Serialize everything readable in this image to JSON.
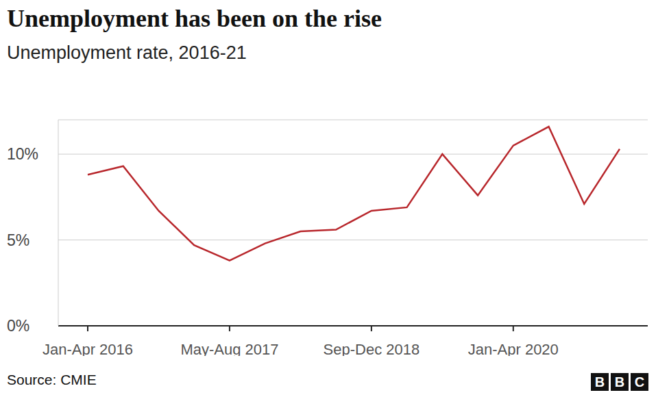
{
  "chart_data": {
    "type": "line",
    "title": "Unemployment has been on the rise",
    "subtitle": "Unemployment rate, 2016-21",
    "source": "Source: CMIE",
    "logo": "BBC",
    "categories": [
      "Jan-Apr 2016",
      null,
      null,
      null,
      "May-Aug 2017",
      null,
      null,
      null,
      "Sep-Dec 2018",
      null,
      null,
      null,
      "Jan-Apr 2020",
      null,
      null,
      null
    ],
    "values": [
      8.8,
      9.3,
      6.7,
      4.7,
      3.8,
      4.8,
      5.5,
      5.6,
      6.7,
      6.9,
      10.0,
      7.6,
      10.5,
      11.6,
      7.1,
      10.3
    ],
    "color": "#b8272c",
    "ylim": [
      0,
      12
    ],
    "yticks": [
      {
        "value": 0,
        "label": "0%"
      },
      {
        "value": 5,
        "label": "5%"
      },
      {
        "value": 10,
        "label": "10%"
      }
    ],
    "grid": true
  }
}
